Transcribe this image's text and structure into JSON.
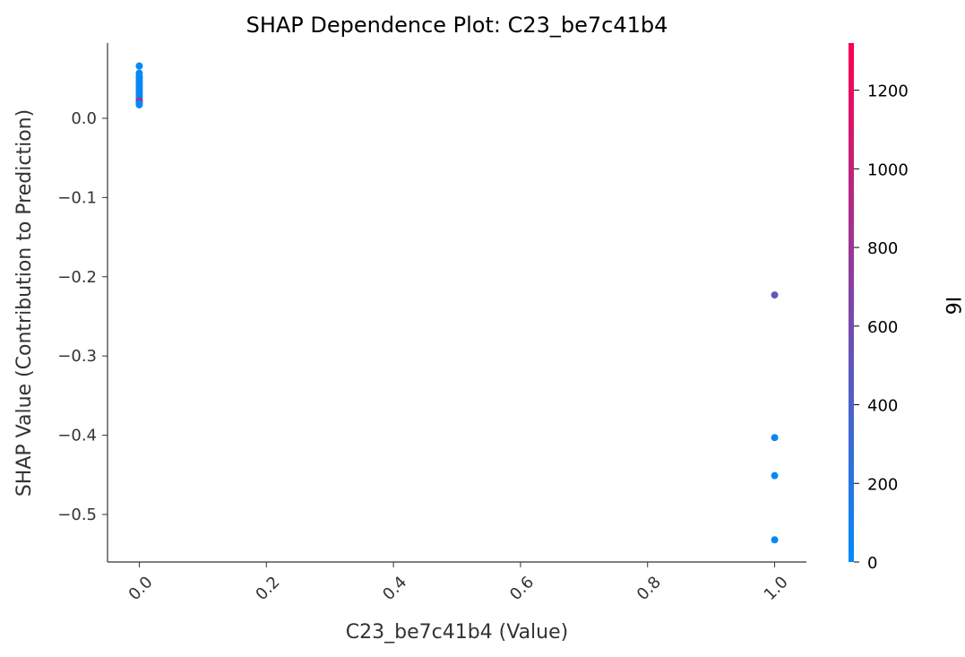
{
  "chart_data": {
    "type": "scatter",
    "title": "SHAP Dependence Plot: C23_be7c41b4",
    "xlabel": "C23_be7c41b4 (Value)",
    "ylabel": "SHAP Value (Contribution to Prediction)",
    "xlim": [
      -0.05,
      1.05
    ],
    "ylim": [
      -0.56,
      0.095
    ],
    "xticks": [
      0.0,
      0.2,
      0.4,
      0.6,
      0.8,
      1.0
    ],
    "xtick_labels": [
      "0.0",
      "0.2",
      "0.4",
      "0.6",
      "0.8",
      "1.0"
    ],
    "yticks": [
      0.0,
      -0.1,
      -0.2,
      -0.3,
      -0.4,
      -0.5
    ],
    "ytick_labels": [
      "0.0",
      "−0.1",
      "−0.2",
      "−0.3",
      "−0.4",
      "−0.5"
    ],
    "grid": false,
    "colorbar": {
      "label": "I6",
      "range": [
        0,
        1320
      ],
      "ticks": [
        0,
        200,
        400,
        600,
        800,
        1000,
        1200
      ],
      "tick_labels": [
        "0",
        "200",
        "400",
        "600",
        "800",
        "1000",
        "1200"
      ],
      "color_low": "#008bfb",
      "color_high": "#ff0052"
    },
    "points": [
      {
        "x": 0.0,
        "y": 0.066,
        "c": 20
      },
      {
        "x": 0.0,
        "y": 0.057,
        "c": 30
      },
      {
        "x": 0.0,
        "y": 0.053,
        "c": 10
      },
      {
        "x": 0.0,
        "y": 0.05,
        "c": 60
      },
      {
        "x": 0.0,
        "y": 0.047,
        "c": 20
      },
      {
        "x": 0.0,
        "y": 0.044,
        "c": 40
      },
      {
        "x": 0.0,
        "y": 0.041,
        "c": 15
      },
      {
        "x": 0.0,
        "y": 0.038,
        "c": 80
      },
      {
        "x": 0.0,
        "y": 0.035,
        "c": 25
      },
      {
        "x": 0.0,
        "y": 0.032,
        "c": 10
      },
      {
        "x": 0.0,
        "y": 0.029,
        "c": 50
      },
      {
        "x": 0.0,
        "y": 0.026,
        "c": 30
      },
      {
        "x": 0.0,
        "y": 0.023,
        "c": 120
      },
      {
        "x": 0.0,
        "y": 0.021,
        "c": 1300
      },
      {
        "x": 0.0,
        "y": 0.019,
        "c": 40
      },
      {
        "x": 0.0,
        "y": 0.017,
        "c": 20
      },
      {
        "x": 1.0,
        "y": -0.223,
        "c": 480
      },
      {
        "x": 1.0,
        "y": -0.403,
        "c": 60
      },
      {
        "x": 1.0,
        "y": -0.451,
        "c": 40
      },
      {
        "x": 1.0,
        "y": -0.532,
        "c": 30
      }
    ]
  }
}
